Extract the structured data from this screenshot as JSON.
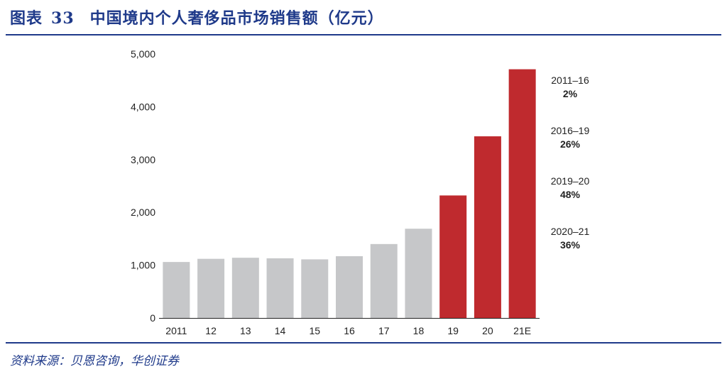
{
  "header": {
    "figure_label": "图表",
    "figure_number": "33",
    "title_text": "中国境内个人奢侈品市场销售额（亿元）"
  },
  "source": {
    "text": "资料来源：贝恩咨询，华创证券"
  },
  "colors": {
    "brand_blue": "#1f3a8a",
    "bar_historical": "#c6c7c9",
    "bar_highlight": "#bf2a2e",
    "axis": "#222222"
  },
  "chart_data": {
    "type": "bar",
    "title": "中国境内个人奢侈品市场销售额（亿元）",
    "xlabel": "",
    "ylabel": "",
    "categories": [
      "2011",
      "12",
      "13",
      "14",
      "15",
      "16",
      "17",
      "18",
      "19",
      "20",
      "21E"
    ],
    "values": [
      1060,
      1120,
      1140,
      1130,
      1110,
      1170,
      1400,
      1690,
      2320,
      3440,
      4710
    ],
    "highlight_from_index": 8,
    "ylim": [
      0,
      5000
    ],
    "yticks": [
      0,
      1000,
      2000,
      3000,
      4000,
      5000
    ],
    "ytick_labels": [
      "0",
      "1,000",
      "2,000",
      "3,000",
      "4,000",
      "5,000"
    ],
    "grid": false,
    "legend": "none",
    "annotations": [
      {
        "period": "2011–16",
        "cagr": "2%"
      },
      {
        "period": "2016–19",
        "cagr": "26%"
      },
      {
        "period": "2019–20",
        "cagr": "48%"
      },
      {
        "period": "2020–21",
        "cagr": "36%"
      }
    ]
  }
}
